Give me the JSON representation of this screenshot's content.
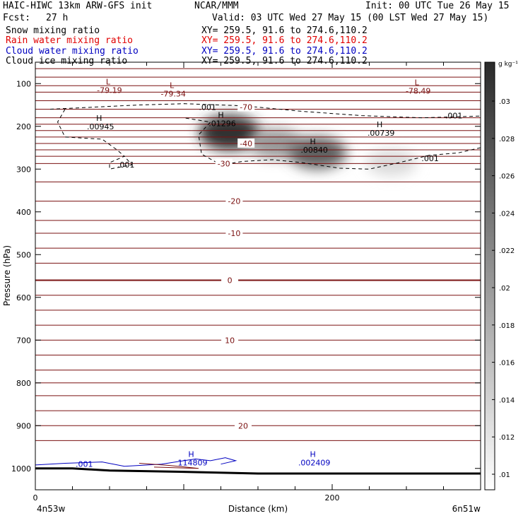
{
  "header": {
    "title": "HAIC-HIWC 13km ARW-GFS init",
    "org": "NCAR/MMM",
    "init": "Init: 00 UTC Tue 26 May 15",
    "fcst_label": "Fcst:",
    "fcst_value": "27 h",
    "valid": "Valid: 03 UTC Wed 27 May 15 (00 LST Wed 27 May 15)"
  },
  "fields": [
    {
      "name": "Snow mixing ratio",
      "xy": "XY= 259.5, 91.6 to 274.6,110.2",
      "color": "#000000"
    },
    {
      "name": "Rain water mixing ratio",
      "xy": "XY= 259.5, 91.6 to 274.6,110.2",
      "color": "#e00000"
    },
    {
      "name": "Cloud water mixing ratio",
      "xy": "XY= 259.5, 91.6 to 274.6,110.2",
      "color": "#0000c0"
    },
    {
      "name": "Cloud ice mixing ratio",
      "xy": "XY= 259.5, 91.6 to 274.6,110.2",
      "color": "#000000"
    }
  ],
  "chart_data": {
    "type": "heatmap",
    "xlabel": "Distance (km)",
    "ylabel": "Pressure (hPa)",
    "xlim": [
      0,
      300
    ],
    "ylim": [
      1050,
      50
    ],
    "xticks": [
      0,
      200
    ],
    "yticks": [
      100,
      200,
      300,
      400,
      500,
      600,
      700,
      800,
      900,
      1000
    ],
    "x_endpoint_labels": [
      "4n53w",
      "6n51w"
    ],
    "colorbar": {
      "unit_label": "g kg⁻¹",
      "ticks": [
        ".01",
        ".012",
        ".014",
        ".016",
        ".018",
        ".02",
        ".022",
        ".024",
        ".026",
        ".028",
        ".03"
      ],
      "range": [
        0.009,
        0.032
      ]
    },
    "shaded_maxima": [
      {
        "x": 131,
        "p": 215,
        "value": 0.031
      },
      {
        "x": 162,
        "p": 240,
        "value": 0.02
      },
      {
        "x": 190,
        "p": 262,
        "value": 0.026
      },
      {
        "x": 240,
        "p": 285,
        "value": 0.013
      }
    ],
    "temperature_contours": [
      {
        "label": "-70",
        "p": 155,
        "x": 142,
        "color": "#7a1010"
      },
      {
        "label": "-40",
        "p": 240,
        "x": 142,
        "color": "#7a1010"
      },
      {
        "label": "-30",
        "p": 287,
        "x": 127,
        "color": "#7a1010"
      },
      {
        "label": "-20",
        "p": 375,
        "x": 134,
        "color": "#7a1010"
      },
      {
        "label": "-10",
        "p": 450,
        "x": 134,
        "color": "#7a1010"
      },
      {
        "label": "0",
        "p": 560,
        "x": 131,
        "color": "#7a1010"
      },
      {
        "label": "10",
        "p": 700,
        "x": 131,
        "color": "#7a1010"
      },
      {
        "label": "20",
        "p": 900,
        "x": 140,
        "color": "#7a1010"
      }
    ],
    "isotherm_levels": [
      65,
      85,
      105,
      120,
      140,
      160,
      180,
      195,
      210,
      225,
      240,
      255,
      270,
      287,
      330,
      375,
      420,
      450,
      485,
      520,
      560,
      595,
      630,
      665,
      700,
      735,
      770,
      800,
      830,
      865,
      900,
      935
    ],
    "extrema_labels": [
      {
        "kind": "L",
        "value": "-79.19",
        "x": 49,
        "p": 112,
        "color": "#7a1010"
      },
      {
        "kind": "L",
        "value": "-79.34",
        "x": 92,
        "p": 120,
        "color": "#7a1010"
      },
      {
        "kind": "L",
        "value": "-78.49",
        "x": 257,
        "p": 114,
        "color": "#7a1010"
      },
      {
        "kind": "H",
        "value": ".00945",
        "x": 43,
        "p": 197,
        "color": "#000000"
      },
      {
        "kind": "H",
        "value": ".01296",
        "x": 125,
        "p": 190,
        "color": "#000000"
      },
      {
        "kind": "H",
        "value": ".00739",
        "x": 232,
        "p": 212,
        "color": "#000000"
      },
      {
        "kind": "H",
        "value": ".00840",
        "x": 187,
        "p": 252,
        "color": "#000000"
      },
      {
        "kind": "H",
        "value": "114809",
        "x": 105,
        "p": 983,
        "color": "#0000c0"
      },
      {
        "kind": "H",
        "value": ".002409",
        "x": 187,
        "p": 983,
        "color": "#0000c0"
      }
    ],
    "contour_labels": [
      {
        "text": ".001",
        "x": 116,
        "p": 155,
        "color": "#000000"
      },
      {
        "text": ".001",
        "x": 282,
        "p": 175,
        "color": "#000000"
      },
      {
        "text": ".001",
        "x": 266,
        "p": 275,
        "color": "#000000"
      },
      {
        "text": ".001",
        "x": 61,
        "p": 290,
        "color": "#000000"
      },
      {
        "text": ".001",
        "x": 33,
        "p": 990,
        "color": "#0000c0"
      }
    ]
  }
}
